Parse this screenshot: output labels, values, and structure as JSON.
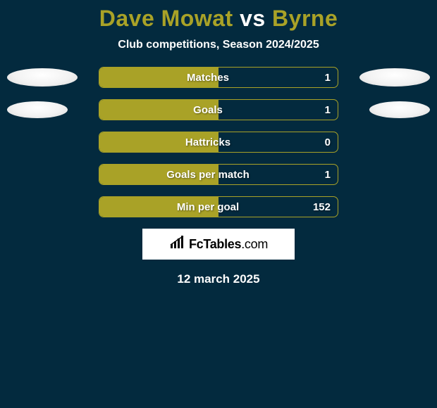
{
  "title": {
    "left": "Dave Mowat",
    "vs": "vs",
    "right": "Byrne",
    "left_color": "#a9a227",
    "vs_color": "#ffffff",
    "right_color": "#a9a227"
  },
  "subtitle": "Club competitions, Season 2024/2025",
  "bar_style": {
    "fill_color": "#a9a227",
    "border_color": "#a9a227",
    "track_bg": "transparent"
  },
  "avatar": {
    "row0_w": 100,
    "row0_h": 26,
    "row1_w": 86,
    "row1_h": 24
  },
  "stats": [
    {
      "label": "Matches",
      "value": "1",
      "fill_pct": 50,
      "show_avatars": true,
      "avatar_size": "row0"
    },
    {
      "label": "Goals",
      "value": "1",
      "fill_pct": 50,
      "show_avatars": true,
      "avatar_size": "row1"
    },
    {
      "label": "Hattricks",
      "value": "0",
      "fill_pct": 50,
      "show_avatars": false
    },
    {
      "label": "Goals per match",
      "value": "1",
      "fill_pct": 50,
      "show_avatars": false
    },
    {
      "label": "Min per goal",
      "value": "152",
      "fill_pct": 50,
      "show_avatars": false
    }
  ],
  "brand": {
    "name": "FcTables",
    "domain": ".com"
  },
  "date": "12 march 2025"
}
